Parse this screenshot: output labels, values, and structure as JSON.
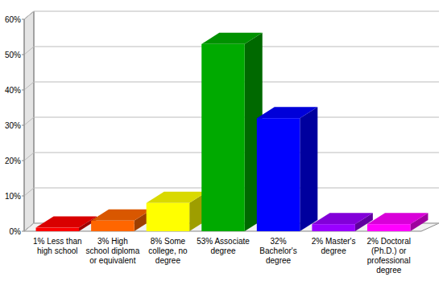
{
  "chart_data": {
    "type": "bar",
    "categories": [
      "1% Less than high school",
      "3% High school diploma or equivalent",
      "8% Some college, no degree",
      "53% Associate degree",
      "32% Bachelor's degree",
      "2% Master's degree",
      "2% Doctoral (Ph.D.) or professional degree"
    ],
    "values": [
      1,
      3,
      8,
      53,
      32,
      2,
      2
    ],
    "colors": [
      "#ff0000",
      "#ff6600",
      "#ffff00",
      "#00aa00",
      "#0000ff",
      "#9900ff",
      "#ff00ff"
    ],
    "ylim": [
      0,
      60
    ],
    "yticks": [
      {
        "value": 0,
        "label": "0%"
      },
      {
        "value": 10,
        "label": "10%"
      },
      {
        "value": 20,
        "label": "20%"
      },
      {
        "value": 30,
        "label": "30%"
      },
      {
        "value": 40,
        "label": "40%"
      },
      {
        "value": 50,
        "label": "50%"
      },
      {
        "value": 60,
        "label": "60%"
      }
    ],
    "grid": true
  }
}
